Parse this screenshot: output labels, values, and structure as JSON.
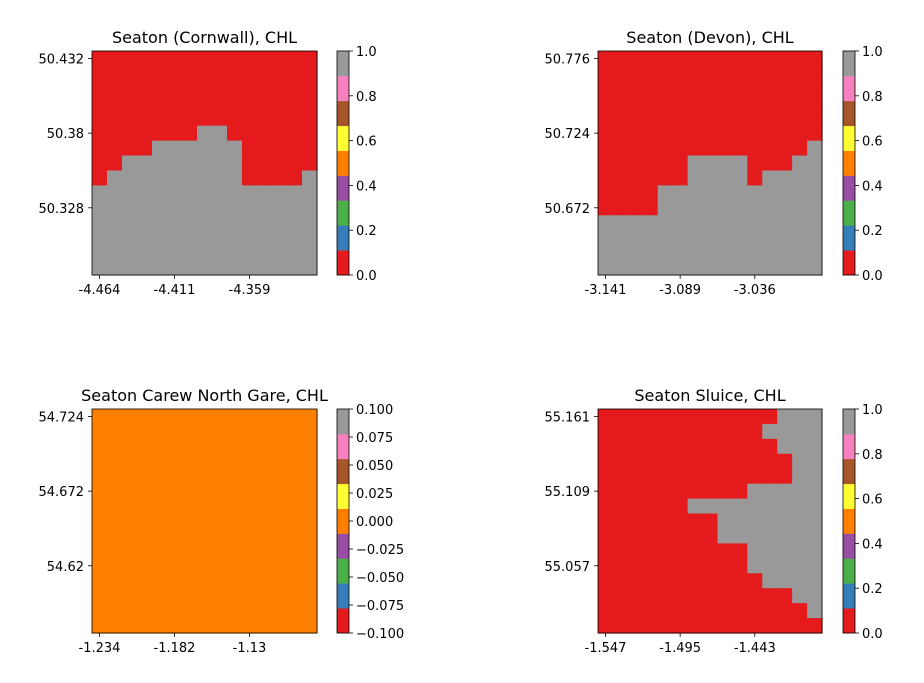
{
  "colormap": [
    "#e41a1c",
    "#377eb8",
    "#4daf4a",
    "#984ea3",
    "#ff7f00",
    "#ffff33",
    "#a65628",
    "#f781bf",
    "#999999"
  ],
  "chart_data": [
    {
      "type": "heatmap",
      "title": "Seaton (Cornwall), CHL",
      "xticks": [
        "-4.464",
        "-4.411",
        "-4.359"
      ],
      "yticks": [
        "50.432",
        "50.38",
        "50.328"
      ],
      "cbar_ticks": [
        "0.0",
        "0.2",
        "0.4",
        "0.6",
        "0.8",
        "1.0"
      ],
      "vmin": 0,
      "vmax": 1,
      "grid": [
        [
          0,
          0,
          0,
          0,
          0,
          0,
          0,
          0,
          0,
          0,
          0,
          0,
          0,
          0,
          0
        ],
        [
          0,
          0,
          0,
          0,
          0,
          0,
          0,
          0,
          0,
          0,
          0,
          0,
          0,
          0,
          0
        ],
        [
          0,
          0,
          0,
          0,
          0,
          0,
          0,
          0,
          0,
          0,
          0,
          0,
          0,
          0,
          0
        ],
        [
          0,
          0,
          0,
          0,
          0,
          0,
          0,
          0,
          0,
          0,
          0,
          0,
          0,
          0,
          0
        ],
        [
          0,
          0,
          0,
          0,
          0,
          0,
          0,
          0,
          0,
          0,
          0,
          0,
          0,
          0,
          0
        ],
        [
          0,
          0,
          0,
          0,
          0,
          0,
          0,
          1,
          1,
          0,
          0,
          0,
          0,
          0,
          0
        ],
        [
          0,
          0,
          0,
          0,
          1,
          1,
          1,
          1,
          1,
          1,
          0,
          0,
          0,
          0,
          0
        ],
        [
          0,
          0,
          1,
          1,
          1,
          1,
          1,
          1,
          1,
          1,
          0,
          0,
          0,
          0,
          0
        ],
        [
          0,
          1,
          1,
          1,
          1,
          1,
          1,
          1,
          1,
          1,
          0,
          0,
          0,
          0,
          1
        ],
        [
          1,
          1,
          1,
          1,
          1,
          1,
          1,
          1,
          1,
          1,
          1,
          1,
          1,
          1,
          1
        ],
        [
          1,
          1,
          1,
          1,
          1,
          1,
          1,
          1,
          1,
          1,
          1,
          1,
          1,
          1,
          1
        ],
        [
          1,
          1,
          1,
          1,
          1,
          1,
          1,
          1,
          1,
          1,
          1,
          1,
          1,
          1,
          1
        ],
        [
          1,
          1,
          1,
          1,
          1,
          1,
          1,
          1,
          1,
          1,
          1,
          1,
          1,
          1,
          1
        ],
        [
          1,
          1,
          1,
          1,
          1,
          1,
          1,
          1,
          1,
          1,
          1,
          1,
          1,
          1,
          1
        ],
        [
          1,
          1,
          1,
          1,
          1,
          1,
          1,
          1,
          1,
          1,
          1,
          1,
          1,
          1,
          1
        ]
      ]
    },
    {
      "type": "heatmap",
      "title": "Seaton (Devon), CHL",
      "xticks": [
        "-3.141",
        "-3.089",
        "-3.036"
      ],
      "yticks": [
        "50.776",
        "50.724",
        "50.672"
      ],
      "cbar_ticks": [
        "0.0",
        "0.2",
        "0.4",
        "0.6",
        "0.8",
        "1.0"
      ],
      "vmin": 0,
      "vmax": 1,
      "grid": [
        [
          0,
          0,
          0,
          0,
          0,
          0,
          0,
          0,
          0,
          0,
          0,
          0,
          0,
          0,
          0
        ],
        [
          0,
          0,
          0,
          0,
          0,
          0,
          0,
          0,
          0,
          0,
          0,
          0,
          0,
          0,
          0
        ],
        [
          0,
          0,
          0,
          0,
          0,
          0,
          0,
          0,
          0,
          0,
          0,
          0,
          0,
          0,
          0
        ],
        [
          0,
          0,
          0,
          0,
          0,
          0,
          0,
          0,
          0,
          0,
          0,
          0,
          0,
          0,
          0
        ],
        [
          0,
          0,
          0,
          0,
          0,
          0,
          0,
          0,
          0,
          0,
          0,
          0,
          0,
          0,
          0
        ],
        [
          0,
          0,
          0,
          0,
          0,
          0,
          0,
          0,
          0,
          0,
          0,
          0,
          0,
          0,
          0
        ],
        [
          0,
          0,
          0,
          0,
          0,
          0,
          0,
          0,
          0,
          0,
          0,
          0,
          0,
          0,
          1
        ],
        [
          0,
          0,
          0,
          0,
          0,
          0,
          1,
          1,
          1,
          1,
          0,
          0,
          0,
          1,
          1
        ],
        [
          0,
          0,
          0,
          0,
          0,
          0,
          1,
          1,
          1,
          1,
          0,
          1,
          1,
          1,
          1
        ],
        [
          0,
          0,
          0,
          0,
          1,
          1,
          1,
          1,
          1,
          1,
          1,
          1,
          1,
          1,
          1
        ],
        [
          0,
          0,
          0,
          0,
          1,
          1,
          1,
          1,
          1,
          1,
          1,
          1,
          1,
          1,
          1
        ],
        [
          1,
          1,
          1,
          1,
          1,
          1,
          1,
          1,
          1,
          1,
          1,
          1,
          1,
          1,
          1
        ],
        [
          1,
          1,
          1,
          1,
          1,
          1,
          1,
          1,
          1,
          1,
          1,
          1,
          1,
          1,
          1
        ],
        [
          1,
          1,
          1,
          1,
          1,
          1,
          1,
          1,
          1,
          1,
          1,
          1,
          1,
          1,
          1
        ],
        [
          1,
          1,
          1,
          1,
          1,
          1,
          1,
          1,
          1,
          1,
          1,
          1,
          1,
          1,
          1
        ]
      ]
    },
    {
      "type": "heatmap",
      "title": "Seaton Carew North Gare, CHL",
      "xticks": [
        "-1.234",
        "-1.182",
        "-1.13"
      ],
      "yticks": [
        "54.724",
        "54.672",
        "54.62"
      ],
      "cbar_ticks": [
        "−0.100",
        "−0.075",
        "−0.050",
        "−0.025",
        "0.000",
        "0.025",
        "0.050",
        "0.075",
        "0.100"
      ],
      "vmin": -0.1,
      "vmax": 0.1,
      "grid": [
        [
          0,
          0,
          0,
          0,
          0,
          0,
          0,
          0,
          0,
          0,
          0,
          0,
          0,
          0,
          0
        ],
        [
          0,
          0,
          0,
          0,
          0,
          0,
          0,
          0,
          0,
          0,
          0,
          0,
          0,
          0,
          0
        ],
        [
          0,
          0,
          0,
          0,
          0,
          0,
          0,
          0,
          0,
          0,
          0,
          0,
          0,
          0,
          0
        ],
        [
          0,
          0,
          0,
          0,
          0,
          0,
          0,
          0,
          0,
          0,
          0,
          0,
          0,
          0,
          0
        ],
        [
          0,
          0,
          0,
          0,
          0,
          0,
          0,
          0,
          0,
          0,
          0,
          0,
          0,
          0,
          0
        ],
        [
          0,
          0,
          0,
          0,
          0,
          0,
          0,
          0,
          0,
          0,
          0,
          0,
          0,
          0,
          0
        ],
        [
          0,
          0,
          0,
          0,
          0,
          0,
          0,
          0,
          0,
          0,
          0,
          0,
          0,
          0,
          0
        ],
        [
          0,
          0,
          0,
          0,
          0,
          0,
          0,
          0,
          0,
          0,
          0,
          0,
          0,
          0,
          0
        ],
        [
          0,
          0,
          0,
          0,
          0,
          0,
          0,
          0,
          0,
          0,
          0,
          0,
          0,
          0,
          0
        ],
        [
          0,
          0,
          0,
          0,
          0,
          0,
          0,
          0,
          0,
          0,
          0,
          0,
          0,
          0,
          0
        ],
        [
          0,
          0,
          0,
          0,
          0,
          0,
          0,
          0,
          0,
          0,
          0,
          0,
          0,
          0,
          0
        ],
        [
          0,
          0,
          0,
          0,
          0,
          0,
          0,
          0,
          0,
          0,
          0,
          0,
          0,
          0,
          0
        ],
        [
          0,
          0,
          0,
          0,
          0,
          0,
          0,
          0,
          0,
          0,
          0,
          0,
          0,
          0,
          0
        ],
        [
          0,
          0,
          0,
          0,
          0,
          0,
          0,
          0,
          0,
          0,
          0,
          0,
          0,
          0,
          0
        ],
        [
          0,
          0,
          0,
          0,
          0,
          0,
          0,
          0,
          0,
          0,
          0,
          0,
          0,
          0,
          0
        ]
      ]
    },
    {
      "type": "heatmap",
      "title": "Seaton Sluice, CHL",
      "xticks": [
        "-1.547",
        "-1.495",
        "-1.443"
      ],
      "yticks": [
        "55.161",
        "55.109",
        "55.057"
      ],
      "cbar_ticks": [
        "0.0",
        "0.2",
        "0.4",
        "0.6",
        "0.8",
        "1.0"
      ],
      "vmin": 0,
      "vmax": 1,
      "grid": [
        [
          0,
          0,
          0,
          0,
          0,
          0,
          0,
          0,
          0,
          0,
          0,
          0,
          1,
          1,
          1
        ],
        [
          0,
          0,
          0,
          0,
          0,
          0,
          0,
          0,
          0,
          0,
          0,
          1,
          1,
          1,
          1
        ],
        [
          0,
          0,
          0,
          0,
          0,
          0,
          0,
          0,
          0,
          0,
          0,
          0,
          1,
          1,
          1
        ],
        [
          0,
          0,
          0,
          0,
          0,
          0,
          0,
          0,
          0,
          0,
          0,
          0,
          0,
          1,
          1
        ],
        [
          0,
          0,
          0,
          0,
          0,
          0,
          0,
          0,
          0,
          0,
          0,
          0,
          0,
          1,
          1
        ],
        [
          0,
          0,
          0,
          0,
          0,
          0,
          0,
          0,
          0,
          0,
          1,
          1,
          1,
          1,
          1
        ],
        [
          0,
          0,
          0,
          0,
          0,
          0,
          1,
          1,
          1,
          1,
          1,
          1,
          1,
          1,
          1
        ],
        [
          0,
          0,
          0,
          0,
          0,
          0,
          0,
          0,
          1,
          1,
          1,
          1,
          1,
          1,
          1
        ],
        [
          0,
          0,
          0,
          0,
          0,
          0,
          0,
          0,
          1,
          1,
          1,
          1,
          1,
          1,
          1
        ],
        [
          0,
          0,
          0,
          0,
          0,
          0,
          0,
          0,
          0,
          0,
          1,
          1,
          1,
          1,
          1
        ],
        [
          0,
          0,
          0,
          0,
          0,
          0,
          0,
          0,
          0,
          0,
          1,
          1,
          1,
          1,
          1
        ],
        [
          0,
          0,
          0,
          0,
          0,
          0,
          0,
          0,
          0,
          0,
          0,
          1,
          1,
          1,
          1
        ],
        [
          0,
          0,
          0,
          0,
          0,
          0,
          0,
          0,
          0,
          0,
          0,
          0,
          0,
          1,
          1
        ],
        [
          0,
          0,
          0,
          0,
          0,
          0,
          0,
          0,
          0,
          0,
          0,
          0,
          0,
          0,
          1
        ],
        [
          0,
          0,
          0,
          0,
          0,
          0,
          0,
          0,
          0,
          0,
          0,
          0,
          0,
          0,
          0
        ]
      ]
    }
  ]
}
